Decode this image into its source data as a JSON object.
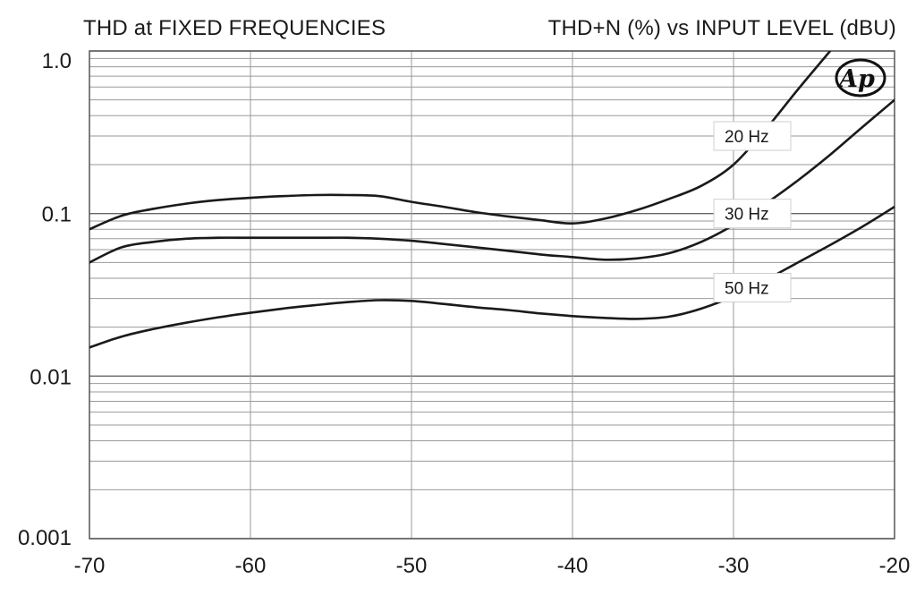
{
  "chart_data": {
    "type": "line",
    "title": "THD at FIXED FREQUENCIES",
    "subtitle": "THD+N (%) vs INPUT LEVEL (dBU)",
    "xlabel": "",
    "ylabel": "",
    "xlim": [
      -70,
      -20
    ],
    "ylim": [
      0.001,
      1.0
    ],
    "yscale": "log",
    "grid": true,
    "xticks": [
      -70,
      -60,
      -50,
      -40,
      -30,
      -20
    ],
    "xtick_labels": [
      "-70",
      "-60",
      "-50",
      "-40",
      "-30",
      "-20"
    ],
    "yticks": [
      1.0,
      0.1,
      0.01,
      0.001
    ],
    "ytick_labels": [
      "1.0",
      "0.1",
      "0.01",
      "0.001"
    ],
    "series": [
      {
        "name": "20 Hz",
        "color": "#1a1a1a",
        "x": [
          -70,
          -68,
          -66,
          -64,
          -62,
          -60,
          -58,
          -56,
          -54,
          -52,
          -50,
          -48,
          -46,
          -44,
          -42,
          -40,
          -38,
          -36,
          -34,
          -32,
          -30,
          -28,
          -26,
          -24
        ],
        "y": [
          0.08,
          0.097,
          0.107,
          0.115,
          0.121,
          0.125,
          0.128,
          0.13,
          0.13,
          0.128,
          0.118,
          0.11,
          0.102,
          0.096,
          0.091,
          0.087,
          0.093,
          0.105,
          0.123,
          0.148,
          0.2,
          0.33,
          0.58,
          1.0
        ]
      },
      {
        "name": "30 Hz",
        "color": "#1a1a1a",
        "x": [
          -70,
          -68,
          -66,
          -64,
          -62,
          -60,
          -58,
          -56,
          -54,
          -52,
          -50,
          -48,
          -46,
          -44,
          -42,
          -40,
          -38,
          -36,
          -34,
          -32,
          -30,
          -28,
          -26,
          -24,
          -22,
          -20
        ],
        "y": [
          0.05,
          0.062,
          0.067,
          0.07,
          0.071,
          0.071,
          0.071,
          0.071,
          0.071,
          0.07,
          0.068,
          0.065,
          0.062,
          0.059,
          0.056,
          0.054,
          0.052,
          0.053,
          0.057,
          0.067,
          0.085,
          0.115,
          0.16,
          0.23,
          0.34,
          0.5
        ]
      },
      {
        "name": "50 Hz",
        "color": "#1a1a1a",
        "x": [
          -70,
          -68,
          -66,
          -64,
          -62,
          -60,
          -58,
          -56,
          -54,
          -52,
          -50,
          -48,
          -46,
          -44,
          -42,
          -40,
          -38,
          -36,
          -34,
          -32,
          -30,
          -28,
          -26,
          -24,
          -22,
          -20
        ],
        "y": [
          0.015,
          0.0175,
          0.0195,
          0.0213,
          0.023,
          0.0245,
          0.026,
          0.0273,
          0.0285,
          0.0293,
          0.029,
          0.0278,
          0.0265,
          0.0255,
          0.0243,
          0.0234,
          0.0228,
          0.0225,
          0.0232,
          0.026,
          0.031,
          0.039,
          0.05,
          0.064,
          0.083,
          0.11
        ]
      }
    ],
    "annotations": [
      {
        "text": "20 Hz",
        "x": -31,
        "y": 0.3
      },
      {
        "text": "30 Hz",
        "x": -31,
        "y": 0.1
      },
      {
        "text": "50 Hz",
        "x": -31,
        "y": 0.035
      }
    ],
    "logo_text": "Ap"
  }
}
